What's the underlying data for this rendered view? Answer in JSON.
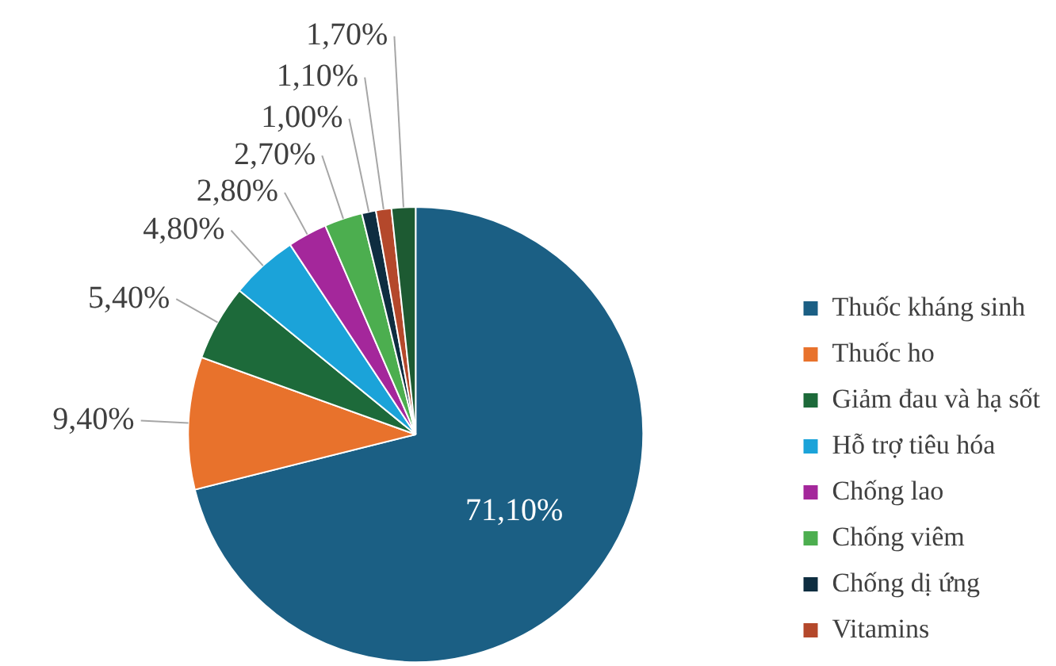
{
  "chart_data": {
    "type": "pie",
    "categories": [
      "Thuốc kháng sinh",
      "Thuốc ho",
      "Giảm đau và hạ sốt",
      "Hỗ trợ tiêu hóa",
      "Chống lao",
      "Chống viêm",
      "Chống dị ứng",
      "Vitamins",
      null
    ],
    "values": [
      71.1,
      9.4,
      5.4,
      4.8,
      2.8,
      2.7,
      1.0,
      1.1,
      1.7
    ],
    "value_labels": [
      "71,10%",
      "9,40%",
      "5,40%",
      "4,80%",
      "2,80%",
      "2,70%",
      "1,00%",
      "1,10%",
      "1,70%"
    ],
    "colors": [
      "#1b5f84",
      "#e8722c",
      "#1d6a3a",
      "#1ba3d9",
      "#a4279b",
      "#4cae4f",
      "#0e2d40",
      "#b4482b",
      "#1d5a32"
    ],
    "legend": "right"
  }
}
